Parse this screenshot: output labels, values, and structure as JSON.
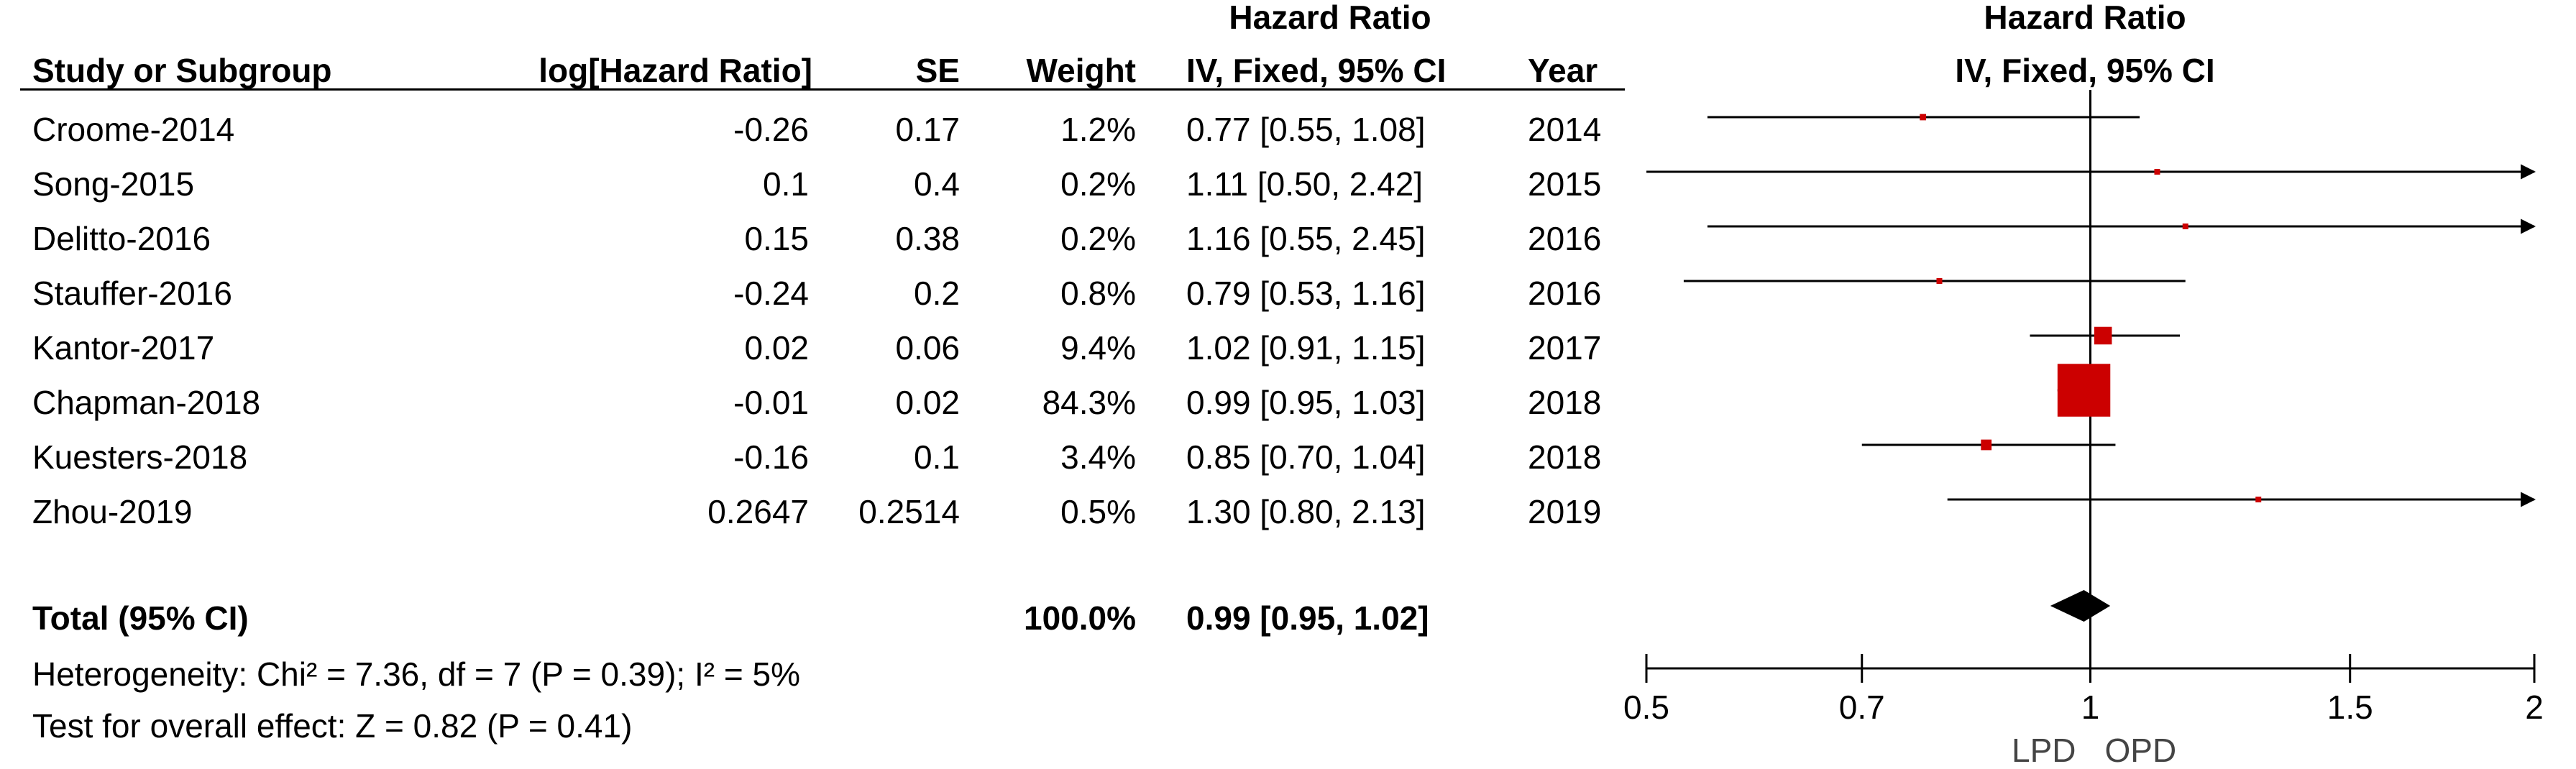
{
  "header": {
    "group_title_left": "Hazard Ratio",
    "group_title_right": "Hazard Ratio",
    "col_study": "Study or Subgroup",
    "col_log": "log[Hazard Ratio]",
    "col_se": "SE",
    "col_weight": "Weight",
    "col_ci": "IV, Fixed, 95% CI",
    "col_year": "Year",
    "col_plot": "IV, Fixed, 95% CI"
  },
  "rows": [
    {
      "study": "Croome-2014",
      "log": "-0.26",
      "se": "0.17",
      "weight": "1.2%",
      "ci": "0.77 [0.55, 1.08]",
      "year": "2014"
    },
    {
      "study": "Song-2015",
      "log": "0.1",
      "se": "0.4",
      "weight": "0.2%",
      "ci": "1.11 [0.50, 2.42]",
      "year": "2015"
    },
    {
      "study": "Delitto-2016",
      "log": "0.15",
      "se": "0.38",
      "weight": "0.2%",
      "ci": "1.16 [0.55, 2.45]",
      "year": "2016"
    },
    {
      "study": "Stauffer-2016",
      "log": "-0.24",
      "se": "0.2",
      "weight": "0.8%",
      "ci": "0.79 [0.53, 1.16]",
      "year": "2016"
    },
    {
      "study": "Kantor-2017",
      "log": "0.02",
      "se": "0.06",
      "weight": "9.4%",
      "ci": "1.02 [0.91, 1.15]",
      "year": "2017"
    },
    {
      "study": "Chapman-2018",
      "log": "-0.01",
      "se": "0.02",
      "weight": "84.3%",
      "ci": "0.99 [0.95, 1.03]",
      "year": "2018"
    },
    {
      "study": "Kuesters-2018",
      "log": "-0.16",
      "se": "0.1",
      "weight": "3.4%",
      "ci": "0.85 [0.70, 1.04]",
      "year": "2018"
    },
    {
      "study": "Zhou-2019",
      "log": "0.2647",
      "se": "0.2514",
      "weight": "0.5%",
      "ci": "1.30 [0.80, 2.13]",
      "year": "2019"
    }
  ],
  "total": {
    "label": "Total (95% CI)",
    "weight": "100.0%",
    "ci": "0.99 [0.95, 1.02]"
  },
  "footer": {
    "heterogeneity": "Heterogeneity: Chi² = 7.36, df = 7 (P = 0.39); I² = 5%",
    "overall": "Test for overall effect: Z = 0.82 (P = 0.41)"
  },
  "chart_data": {
    "type": "forest",
    "scale": "log",
    "xlim": [
      0.5,
      2
    ],
    "ticks": [
      0.5,
      0.7,
      1,
      1.5,
      2
    ],
    "tick_labels": [
      "0.5",
      "0.7",
      "1",
      "1.5",
      "2"
    ],
    "reference_line": 1,
    "favours_left": "LPD",
    "favours_right": "OPD",
    "studies": [
      {
        "name": "Croome-2014",
        "hr": 0.77,
        "lo": 0.55,
        "hi": 1.08,
        "weight": 1.2
      },
      {
        "name": "Song-2015",
        "hr": 1.11,
        "lo": 0.5,
        "hi": 2.42,
        "weight": 0.2
      },
      {
        "name": "Delitto-2016",
        "hr": 1.16,
        "lo": 0.55,
        "hi": 2.45,
        "weight": 0.2
      },
      {
        "name": "Stauffer-2016",
        "hr": 0.79,
        "lo": 0.53,
        "hi": 1.16,
        "weight": 0.8
      },
      {
        "name": "Kantor-2017",
        "hr": 1.02,
        "lo": 0.91,
        "hi": 1.15,
        "weight": 9.4
      },
      {
        "name": "Chapman-2018",
        "hr": 0.99,
        "lo": 0.95,
        "hi": 1.03,
        "weight": 84.3
      },
      {
        "name": "Kuesters-2018",
        "hr": 0.85,
        "lo": 0.7,
        "hi": 1.04,
        "weight": 3.4
      },
      {
        "name": "Zhou-2019",
        "hr": 1.3,
        "lo": 0.8,
        "hi": 2.13,
        "weight": 0.5
      }
    ],
    "pooled": {
      "hr": 0.99,
      "lo": 0.95,
      "hi": 1.02
    },
    "colors": {
      "point": "#cc0000",
      "line": "#000000",
      "diamond": "#000000"
    }
  }
}
